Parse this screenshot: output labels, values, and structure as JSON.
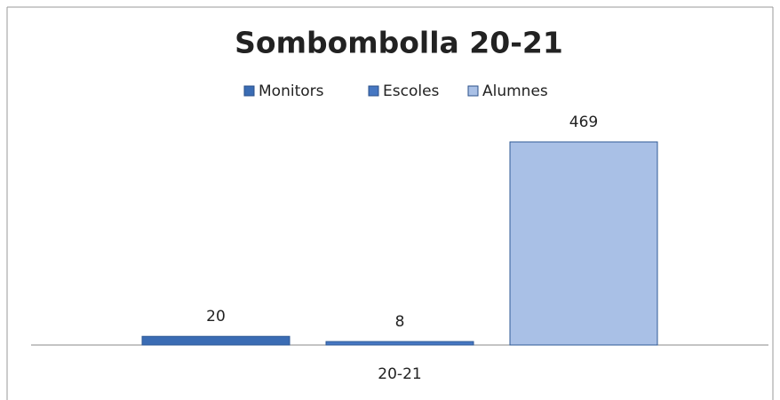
{
  "chart_data": {
    "type": "bar",
    "title": "Sombombolla 20-21",
    "categories": [
      "20-21"
    ],
    "series": [
      {
        "name": "Monitors",
        "color": "#3a6cb4",
        "values": [
          20
        ]
      },
      {
        "name": "Escoles",
        "color": "#4677c2",
        "values": [
          8
        ]
      },
      {
        "name": "Alumnes",
        "color": "#a9c0e6",
        "values": [
          469
        ]
      }
    ],
    "legend": "top"
  }
}
